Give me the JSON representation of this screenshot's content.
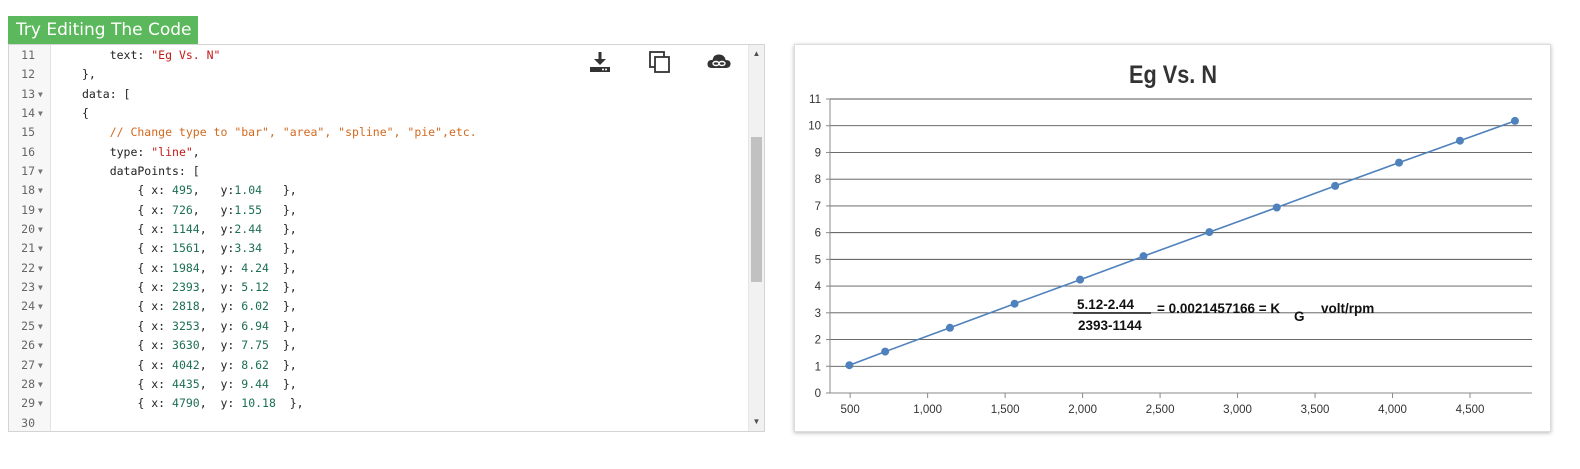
{
  "header": {
    "badge_label": "Try Editing The Code"
  },
  "editor": {
    "toolbar": {
      "download_icon": "download-icon",
      "copy_icon": "copy-icon",
      "cloud_icon": "cloud-link-icon"
    },
    "lines": [
      {
        "num": "11",
        "fold": false,
        "tokens": [
          {
            "t": "p",
            "v": "    text: "
          },
          {
            "t": "s",
            "v": "\"Eg Vs. N\""
          }
        ]
      },
      {
        "num": "12",
        "fold": false,
        "tokens": [
          {
            "t": "p",
            "v": "},"
          }
        ]
      },
      {
        "num": "13",
        "fold": true,
        "tokens": [
          {
            "t": "p",
            "v": "data: ["
          }
        ]
      },
      {
        "num": "14",
        "fold": true,
        "tokens": [
          {
            "t": "p",
            "v": "{"
          }
        ]
      },
      {
        "num": "15",
        "fold": false,
        "tokens": [
          {
            "t": "c",
            "v": "    // Change type to \"bar\", \"area\", \"spline\", \"pie\",etc."
          }
        ]
      },
      {
        "num": "16",
        "fold": false,
        "tokens": [
          {
            "t": "p",
            "v": "    type: "
          },
          {
            "t": "s",
            "v": "\"line\""
          },
          {
            "t": "p",
            "v": ","
          }
        ]
      },
      {
        "num": "17",
        "fold": true,
        "tokens": [
          {
            "t": "p",
            "v": "    dataPoints: ["
          }
        ]
      },
      {
        "num": "18",
        "fold": true,
        "tokens": [
          {
            "t": "p",
            "v": "        { x: "
          },
          {
            "t": "n",
            "v": "495"
          },
          {
            "t": "p",
            "v": ",   y:"
          },
          {
            "t": "n",
            "v": "1.04"
          },
          {
            "t": "p",
            "v": "   },"
          }
        ]
      },
      {
        "num": "19",
        "fold": true,
        "tokens": [
          {
            "t": "p",
            "v": "        { x: "
          },
          {
            "t": "n",
            "v": "726"
          },
          {
            "t": "p",
            "v": ",   y:"
          },
          {
            "t": "n",
            "v": "1.55"
          },
          {
            "t": "p",
            "v": "   },"
          }
        ]
      },
      {
        "num": "20",
        "fold": true,
        "tokens": [
          {
            "t": "p",
            "v": "        { x: "
          },
          {
            "t": "n",
            "v": "1144"
          },
          {
            "t": "p",
            "v": ",  y:"
          },
          {
            "t": "n",
            "v": "2.44"
          },
          {
            "t": "p",
            "v": "   },"
          }
        ]
      },
      {
        "num": "21",
        "fold": true,
        "tokens": [
          {
            "t": "p",
            "v": "        { x: "
          },
          {
            "t": "n",
            "v": "1561"
          },
          {
            "t": "p",
            "v": ",  y:"
          },
          {
            "t": "n",
            "v": "3.34"
          },
          {
            "t": "p",
            "v": "   },"
          }
        ]
      },
      {
        "num": "22",
        "fold": true,
        "tokens": [
          {
            "t": "p",
            "v": "        { x: "
          },
          {
            "t": "n",
            "v": "1984"
          },
          {
            "t": "p",
            "v": ",  y: "
          },
          {
            "t": "n",
            "v": "4.24"
          },
          {
            "t": "p",
            "v": "  },"
          }
        ]
      },
      {
        "num": "23",
        "fold": true,
        "tokens": [
          {
            "t": "p",
            "v": "        { x: "
          },
          {
            "t": "n",
            "v": "2393"
          },
          {
            "t": "p",
            "v": ",  y: "
          },
          {
            "t": "n",
            "v": "5.12"
          },
          {
            "t": "p",
            "v": "  },"
          }
        ]
      },
      {
        "num": "24",
        "fold": true,
        "tokens": [
          {
            "t": "p",
            "v": "        { x: "
          },
          {
            "t": "n",
            "v": "2818"
          },
          {
            "t": "p",
            "v": ",  y: "
          },
          {
            "t": "n",
            "v": "6.02"
          },
          {
            "t": "p",
            "v": "  },"
          }
        ]
      },
      {
        "num": "25",
        "fold": true,
        "tokens": [
          {
            "t": "p",
            "v": "        { x: "
          },
          {
            "t": "n",
            "v": "3253"
          },
          {
            "t": "p",
            "v": ",  y: "
          },
          {
            "t": "n",
            "v": "6.94"
          },
          {
            "t": "p",
            "v": "  },"
          }
        ]
      },
      {
        "num": "26",
        "fold": true,
        "tokens": [
          {
            "t": "p",
            "v": "        { x: "
          },
          {
            "t": "n",
            "v": "3630"
          },
          {
            "t": "p",
            "v": ",  y: "
          },
          {
            "t": "n",
            "v": "7.75"
          },
          {
            "t": "p",
            "v": "  },"
          }
        ]
      },
      {
        "num": "27",
        "fold": true,
        "tokens": [
          {
            "t": "p",
            "v": "        { x: "
          },
          {
            "t": "n",
            "v": "4042"
          },
          {
            "t": "p",
            "v": ",  y: "
          },
          {
            "t": "n",
            "v": "8.62"
          },
          {
            "t": "p",
            "v": "  },"
          }
        ]
      },
      {
        "num": "28",
        "fold": true,
        "tokens": [
          {
            "t": "p",
            "v": "        { x: "
          },
          {
            "t": "n",
            "v": "4435"
          },
          {
            "t": "p",
            "v": ",  y: "
          },
          {
            "t": "n",
            "v": "9.44"
          },
          {
            "t": "p",
            "v": "  },"
          }
        ]
      },
      {
        "num": "29",
        "fold": true,
        "tokens": [
          {
            "t": "p",
            "v": "        { x: "
          },
          {
            "t": "n",
            "v": "4790"
          },
          {
            "t": "p",
            "v": ",  y: "
          },
          {
            "t": "n",
            "v": "10.18"
          },
          {
            "t": "p",
            "v": "  },"
          }
        ]
      },
      {
        "num": "30",
        "fold": false,
        "tokens": []
      }
    ]
  },
  "chart_data": {
    "type": "line",
    "title": "Eg Vs. N",
    "xlabel": "",
    "ylabel": "",
    "x_ticks": [
      "500",
      "1,000",
      "1,500",
      "2,000",
      "2,500",
      "3,000",
      "3,500",
      "4,000",
      "4,500"
    ],
    "x_tick_values": [
      500,
      1000,
      1500,
      2000,
      2500,
      3000,
      3500,
      4000,
      4500
    ],
    "y_ticks": [
      "0",
      "1",
      "2",
      "3",
      "4",
      "5",
      "6",
      "7",
      "8",
      "9",
      "10",
      "11"
    ],
    "ylim": [
      0,
      11
    ],
    "grid": "horizontal",
    "series": [
      {
        "color": "#4f81bd",
        "points": [
          {
            "x": 495,
            "y": 1.04
          },
          {
            "x": 726,
            "y": 1.55
          },
          {
            "x": 1144,
            "y": 2.44
          },
          {
            "x": 1561,
            "y": 3.34
          },
          {
            "x": 1984,
            "y": 4.24
          },
          {
            "x": 2393,
            "y": 5.12
          },
          {
            "x": 2818,
            "y": 6.02
          },
          {
            "x": 3253,
            "y": 6.94
          },
          {
            "x": 3630,
            "y": 7.75
          },
          {
            "x": 4042,
            "y": 8.62
          },
          {
            "x": 4435,
            "y": 9.44
          },
          {
            "x": 4790,
            "y": 10.18
          }
        ]
      }
    ],
    "annotation": {
      "numerator": "5.12-2.44",
      "denominator": "2393-1144",
      "equals_text": "= 0.0021457166  = K",
      "subscript": "G",
      "unit": "volt/rpm"
    }
  }
}
